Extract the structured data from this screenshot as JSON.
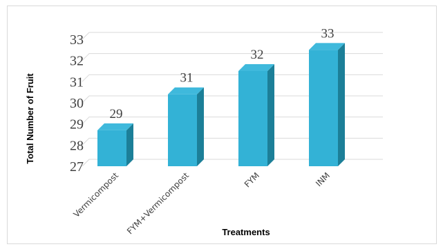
{
  "chart_data": {
    "type": "bar",
    "style": "3d-column",
    "categories": [
      "Vermicompost",
      "FYM+Vermicompost",
      "FYM",
      "INM"
    ],
    "values": [
      29,
      31,
      32,
      33
    ],
    "data_labels": [
      "29",
      "31",
      "32",
      "33"
    ],
    "bar_heights_in_axis_units": [
      28.7,
      30.4,
      31.5,
      32.5
    ],
    "title": "",
    "xlabel": "Treatments",
    "ylabel": "Total Number of Fruit",
    "ylim": [
      27,
      33
    ],
    "yticks": [
      "27",
      "28",
      "29",
      "30",
      "31",
      "32",
      "33"
    ],
    "grid": true,
    "legend": "none",
    "colors": {
      "bar_front": "#33b2d6",
      "bar_side": "#1c7f98",
      "bar_top": "#3fb9dc",
      "gridline": "#d9d9d9",
      "text": "#404040"
    }
  }
}
